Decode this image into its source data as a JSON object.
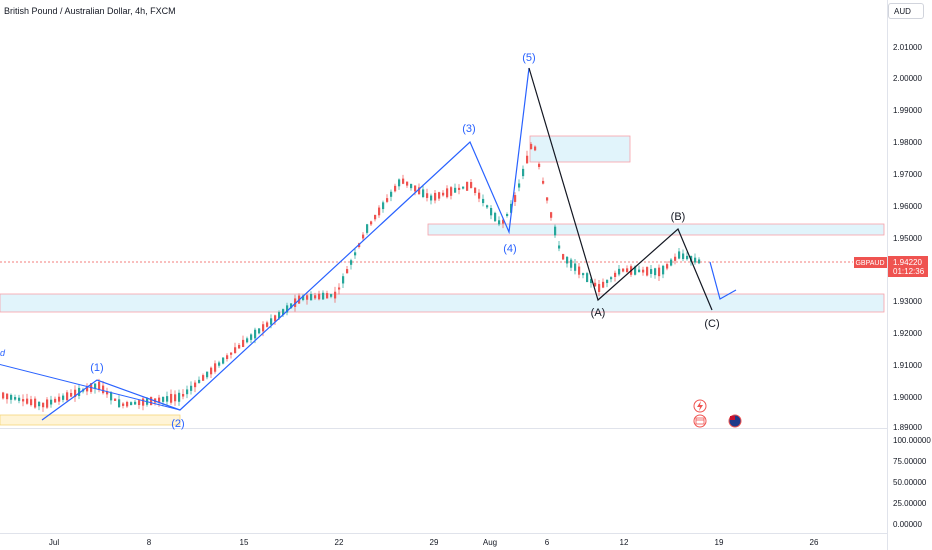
{
  "header": {
    "title": "British Pound / Australian Dollar, 4h, FXCM",
    "currency": "AUD"
  },
  "price_axis": {
    "ticks": [
      "2.01000",
      "2.00000",
      "1.99000",
      "1.98000",
      "1.97000",
      "1.96000",
      "1.95000",
      "1.93000",
      "1.92000",
      "1.91000",
      "1.90000",
      "1.89000"
    ]
  },
  "indicator_axis": {
    "ticks": [
      "100.00000",
      "75.00000",
      "50.00000",
      "25.00000",
      "0.00000"
    ]
  },
  "time_axis": {
    "ticks": [
      "Jul",
      "8",
      "15",
      "22",
      "29",
      "Aug",
      "6",
      "12",
      "19",
      "26"
    ]
  },
  "current_price": {
    "symbol": "GBPAUD",
    "price": "1.94220",
    "countdown": "01:12:36"
  },
  "colors": {
    "up": "#26a69a",
    "down": "#ef5350",
    "wave_impulse": "#2962ff",
    "wave_corrective": "#131722",
    "zone_fill": "#e1f4fb",
    "zone_border": "#f7a1a8"
  },
  "wave_labels": {
    "w1": "(1)",
    "w2": "(2)",
    "w3": "(3)",
    "w4": "(4)",
    "w5": "(5)",
    "wA": "(A)",
    "wB": "(B)",
    "wC": "(C)"
  },
  "partial_label": "d",
  "icons": [
    "lightning-icon",
    "calendar-event-icon",
    "flag-au-icon"
  ]
}
